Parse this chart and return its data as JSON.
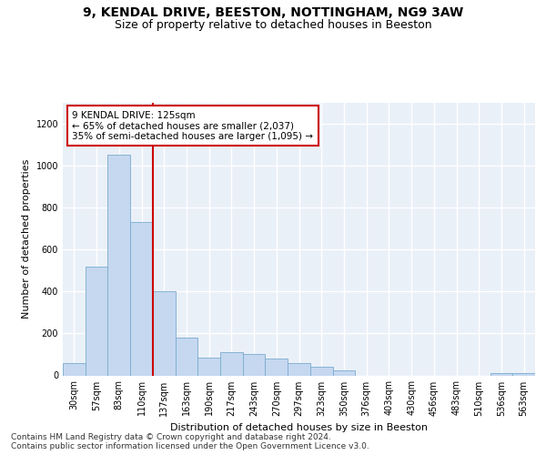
{
  "title_line1": "9, KENDAL DRIVE, BEESTON, NOTTINGHAM, NG9 3AW",
  "title_line2": "Size of property relative to detached houses in Beeston",
  "xlabel": "Distribution of detached houses by size in Beeston",
  "ylabel": "Number of detached properties",
  "categories": [
    "30sqm",
    "57sqm",
    "83sqm",
    "110sqm",
    "137sqm",
    "163sqm",
    "190sqm",
    "217sqm",
    "243sqm",
    "270sqm",
    "297sqm",
    "323sqm",
    "350sqm",
    "376sqm",
    "403sqm",
    "430sqm",
    "456sqm",
    "483sqm",
    "510sqm",
    "536sqm",
    "563sqm"
  ],
  "values": [
    60,
    520,
    1050,
    730,
    400,
    180,
    85,
    110,
    100,
    80,
    60,
    40,
    25,
    0,
    0,
    0,
    0,
    0,
    0,
    10,
    10
  ],
  "bar_color": "#c5d8f0",
  "bar_edge_color": "#7aabce",
  "vline_x": 3.5,
  "vline_color": "#cc0000",
  "annotation_text": "9 KENDAL DRIVE: 125sqm\n← 65% of detached houses are smaller (2,037)\n35% of semi-detached houses are larger (1,095) →",
  "annotation_box_color": "#ffffff",
  "annotation_box_edge": "#cc0000",
  "ylim": [
    0,
    1300
  ],
  "yticks": [
    0,
    200,
    400,
    600,
    800,
    1000,
    1200
  ],
  "footer": "Contains HM Land Registry data © Crown copyright and database right 2024.\nContains public sector information licensed under the Open Government Licence v3.0.",
  "bg_color": "#eaf0f8",
  "grid_color": "#ffffff",
  "title_fontsize": 10,
  "subtitle_fontsize": 9,
  "axis_label_fontsize": 8,
  "tick_fontsize": 7,
  "annotation_fontsize": 7.5,
  "footer_fontsize": 6.5
}
